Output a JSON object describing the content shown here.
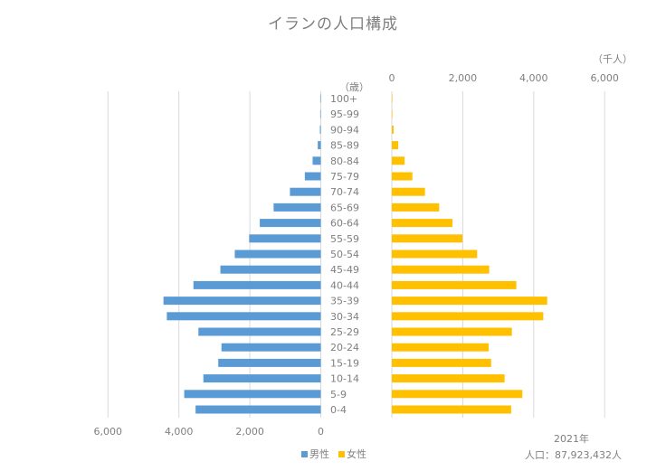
{
  "chart_data": {
    "type": "bar",
    "title": "イランの人口構成",
    "unit_label": "（千人）",
    "age_label": "（歳）",
    "categories": [
      "100+",
      "95-99",
      "90-94",
      "85-89",
      "80-84",
      "75-79",
      "70-74",
      "65-69",
      "60-64",
      "55-59",
      "50-54",
      "45-49",
      "40-44",
      "35-39",
      "30-34",
      "25-29",
      "20-24",
      "15-19",
      "10-14",
      "5-9",
      "0-4"
    ],
    "series": [
      {
        "name": "男性",
        "color": "#5B9BD5",
        "side": "left",
        "values": [
          5,
          5,
          25,
          85,
          230,
          450,
          870,
          1330,
          1720,
          2020,
          2425,
          2830,
          3590,
          4435,
          4340,
          3450,
          2800,
          2890,
          3310,
          3850,
          3530
        ]
      },
      {
        "name": "女性",
        "color": "#FFC000",
        "side": "right",
        "values": [
          10,
          8,
          50,
          180,
          360,
          580,
          935,
          1335,
          1710,
          1990,
          2405,
          2745,
          3510,
          4380,
          4270,
          3385,
          2730,
          2800,
          3180,
          3680,
          3365
        ]
      }
    ],
    "xlim": [
      0,
      6000
    ],
    "right_ticks": [
      "0",
      "2,000",
      "4,000",
      "6,000"
    ],
    "left_ticks": [
      "6,000",
      "4,000",
      "2,000",
      "0"
    ],
    "grid": true,
    "legend_position": "bottom"
  },
  "footer": {
    "year": "2021年",
    "population": "人口：87,923,432人"
  }
}
